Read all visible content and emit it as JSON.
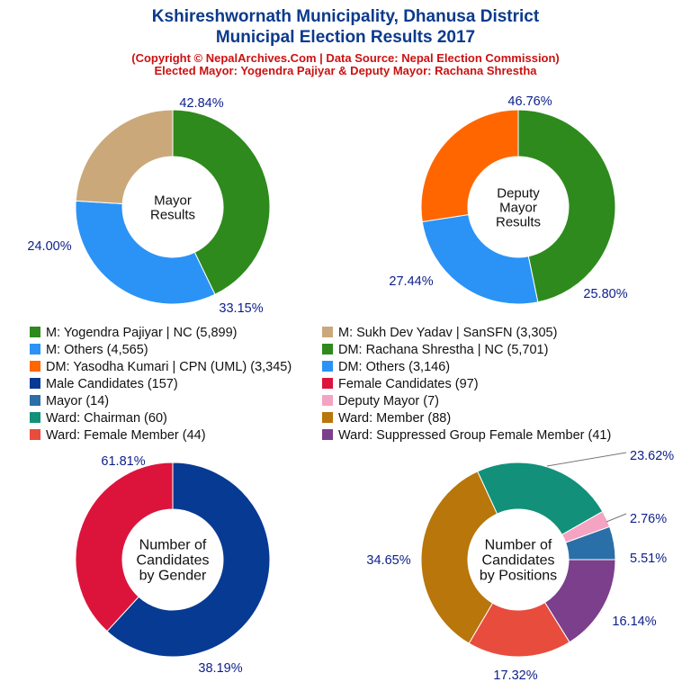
{
  "title_line1": "Kshireshwornath Municipality, Dhanusa District",
  "title_line2": "Municipal Election Results 2017",
  "subtitle_line1": "(Copyright © NepalArchives.Com | Data Source: Nepal Election Commission)",
  "subtitle_line2": "Elected Mayor: Yogendra Pajiyar & Deputy Mayor: Rachana Shrestha",
  "chart_data": [
    {
      "type": "pie",
      "center_label": [
        "Mayor",
        "Results"
      ],
      "slices": [
        {
          "label": "M: Yogendra Pajiyar | NC",
          "value": 5899,
          "percent_label": "42.84%",
          "color": "#2e8a1d"
        },
        {
          "label": "M: Others",
          "value": 4565,
          "percent_label": "33.15%",
          "color": "#2a93f5"
        },
        {
          "label": "M: Sukh Dev Yadav | SanSFN",
          "value": 3305,
          "percent_label": "24.00%",
          "color": "#cba87a"
        }
      ]
    },
    {
      "type": "pie",
      "center_label": [
        "Deputy",
        "Mayor",
        "Results"
      ],
      "slices": [
        {
          "label": "DM: Rachana Shrestha | NC",
          "value": 5701,
          "percent_label": "46.76%",
          "color": "#2e8a1d"
        },
        {
          "label": "DM: Others",
          "value": 3146,
          "percent_label": "25.80%",
          "color": "#2a93f5"
        },
        {
          "label": "DM: Yasodha Kumari | CPN (UML)",
          "value": 3345,
          "percent_label": "27.44%",
          "color": "#ff6600"
        }
      ]
    },
    {
      "type": "pie",
      "center_label": [
        "Number of",
        "Candidates",
        "by Gender"
      ],
      "slices": [
        {
          "label": "Male Candidates",
          "value": 157,
          "percent_label": "61.81%",
          "color": "#073a93"
        },
        {
          "label": "Female Candidates",
          "value": 97,
          "percent_label": "38.19%",
          "color": "#dc143c"
        }
      ]
    },
    {
      "type": "pie",
      "center_label": [
        "Number of",
        "Candidates",
        "by Positions"
      ],
      "slices": [
        {
          "label": "Mayor",
          "value": 14,
          "percent_label": "5.51%",
          "color": "#2a6fa7"
        },
        {
          "label": "Deputy Mayor",
          "value": 7,
          "percent_label": "2.76%",
          "color": "#f5a3c2"
        },
        {
          "label": "Ward: Chairman",
          "value": 60,
          "percent_label": "23.62%",
          "color": "#12907a"
        },
        {
          "label": "Ward: Member",
          "value": 88,
          "percent_label": "34.65%",
          "color": "#b8760b"
        },
        {
          "label": "Ward: Female Member",
          "value": 44,
          "percent_label": "17.32%",
          "color": "#e84c3d"
        },
        {
          "label": "Ward: Suppressed Group Female Member",
          "value": 41,
          "percent_label": "16.14%",
          "color": "#7b3f8c"
        }
      ]
    }
  ],
  "legend": [
    {
      "text": "M: Yogendra Pajiyar | NC (5,899)",
      "color": "#2e8a1d"
    },
    {
      "text": "M: Sukh Dev Yadav | SanSFN (3,305)",
      "color": "#cba87a"
    },
    {
      "text": "M: Others (4,565)",
      "color": "#2a93f5"
    },
    {
      "text": "DM: Rachana Shrestha | NC (5,701)",
      "color": "#2e8a1d"
    },
    {
      "text": "DM: Yasodha Kumari | CPN (UML) (3,345)",
      "color": "#ff6600"
    },
    {
      "text": "DM: Others (3,146)",
      "color": "#2a93f5"
    },
    {
      "text": "Male Candidates (157)",
      "color": "#073a93"
    },
    {
      "text": "Female Candidates (97)",
      "color": "#dc143c"
    },
    {
      "text": "Mayor (14)",
      "color": "#2a6fa7"
    },
    {
      "text": "Deputy Mayor (7)",
      "color": "#f5a3c2"
    },
    {
      "text": "Ward: Chairman (60)",
      "color": "#12907a"
    },
    {
      "text": "Ward: Member (88)",
      "color": "#b8760b"
    },
    {
      "text": "Ward: Female Member (44)",
      "color": "#e84c3d"
    },
    {
      "text": "Ward: Suppressed Group Female Member (41)",
      "color": "#7b3f8c"
    }
  ]
}
